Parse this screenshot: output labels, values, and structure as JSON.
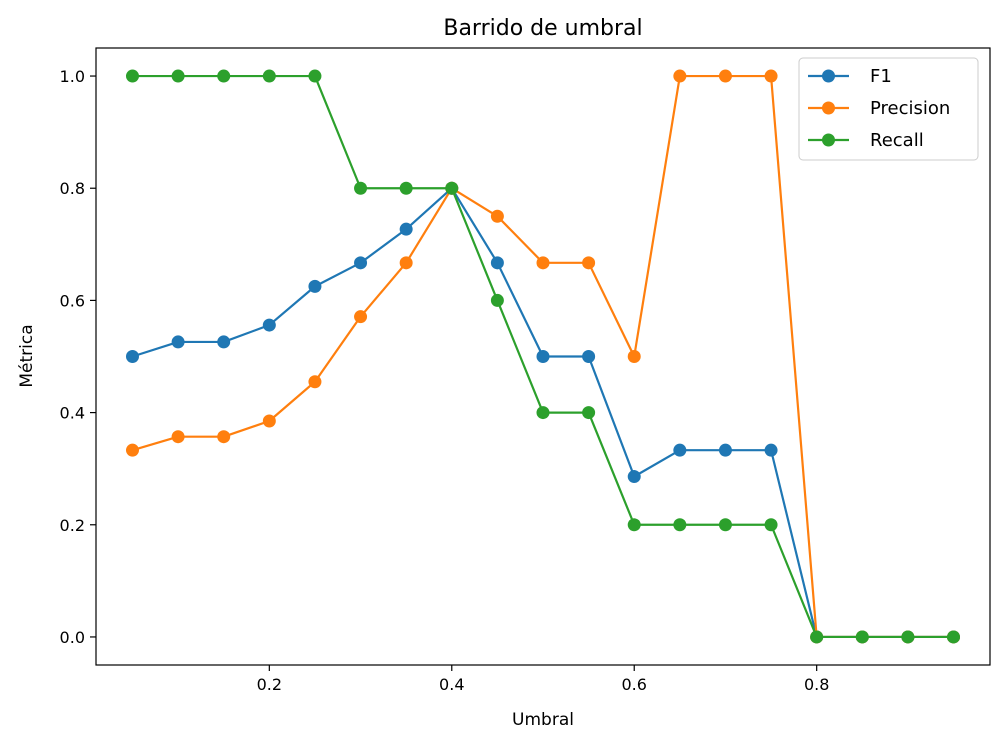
{
  "chart_data": {
    "type": "line",
    "title": "Barrido de umbral",
    "xlabel": "Umbral",
    "ylabel": "Métrica",
    "xlim": [
      0.01,
      0.99
    ],
    "ylim": [
      -0.05,
      1.05
    ],
    "x_ticks": [
      0.2,
      0.4,
      0.6,
      0.8
    ],
    "y_ticks": [
      0.0,
      0.2,
      0.4,
      0.6,
      0.8,
      1.0
    ],
    "x_tick_labels": [
      "0.2",
      "0.4",
      "0.6",
      "0.8"
    ],
    "y_tick_labels": [
      "0.0",
      "0.2",
      "0.4",
      "0.6",
      "0.8",
      "1.0"
    ],
    "grid": false,
    "legend_position": "top-right",
    "x": [
      0.05,
      0.1,
      0.15,
      0.2,
      0.25,
      0.3,
      0.35,
      0.4,
      0.45,
      0.5,
      0.55,
      0.6,
      0.65,
      0.7,
      0.75,
      0.8,
      0.85,
      0.9,
      0.95
    ],
    "series": [
      {
        "name": "F1",
        "color": "#1f77b4",
        "values": [
          0.5,
          0.526,
          0.526,
          0.556,
          0.625,
          0.667,
          0.727,
          0.8,
          0.667,
          0.5,
          0.5,
          0.286,
          0.333,
          0.333,
          0.333,
          0.0,
          0.0,
          0.0,
          0.0
        ]
      },
      {
        "name": "Precision",
        "color": "#ff7f0e",
        "values": [
          0.333,
          0.357,
          0.357,
          0.385,
          0.455,
          0.571,
          0.667,
          0.8,
          0.75,
          0.667,
          0.667,
          0.5,
          1.0,
          1.0,
          1.0,
          0.0,
          0.0,
          0.0,
          0.0
        ]
      },
      {
        "name": "Recall",
        "color": "#2ca02c",
        "values": [
          1.0,
          1.0,
          1.0,
          1.0,
          1.0,
          0.8,
          0.8,
          0.8,
          0.6,
          0.4,
          0.4,
          0.2,
          0.2,
          0.2,
          0.2,
          0.0,
          0.0,
          0.0,
          0.0
        ]
      }
    ]
  }
}
